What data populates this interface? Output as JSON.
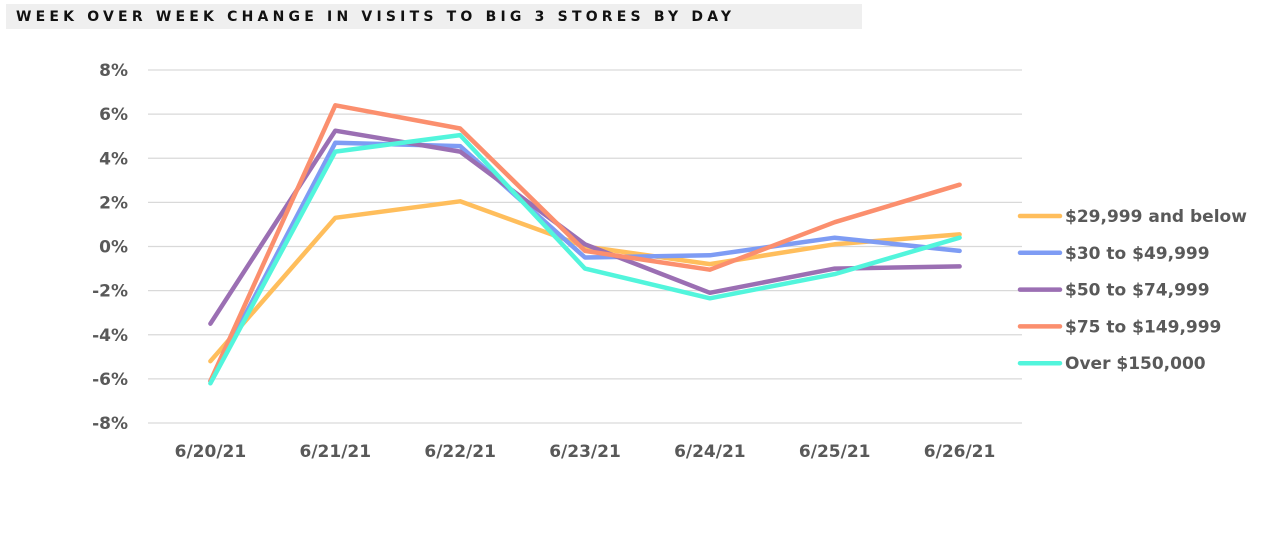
{
  "title": "WEEK OVER WEEK CHANGE IN VISITS TO BIG 3 STORES BY DAY",
  "chart_data": {
    "type": "line",
    "title": "WEEK OVER WEEK CHANGE IN VISITS TO BIG 3 STORES BY DAY",
    "xlabel": "",
    "ylabel": "",
    "categories": [
      "6/20/21",
      "6/21/21",
      "6/22/21",
      "6/23/21",
      "6/24/21",
      "6/25/21",
      "6/26/21"
    ],
    "ylim": [
      -8,
      8
    ],
    "yticks": [
      8,
      6,
      4,
      2,
      0,
      -2,
      -4,
      -6,
      -8
    ],
    "ytick_labels": [
      "8%",
      "6%",
      "4%",
      "2%",
      "0%",
      "-2%",
      "-4%",
      "-6%",
      "-8%"
    ],
    "grid": true,
    "legend_position": "right",
    "series": [
      {
        "name": "$29,999 and below",
        "color": "#FFBE5C",
        "values": [
          -5.2,
          1.3,
          2.05,
          0.0,
          -0.8,
          0.1,
          0.55
        ]
      },
      {
        "name": "$30 to $49,999",
        "color": "#7E9CF4",
        "values": [
          -6.1,
          4.7,
          4.55,
          -0.5,
          -0.4,
          0.4,
          -0.2
        ]
      },
      {
        "name": "$50 to $74,999",
        "color": "#9B6FB3",
        "values": [
          -3.5,
          5.25,
          4.3,
          0.1,
          -2.1,
          -1.0,
          -0.9
        ]
      },
      {
        "name": "$75 to $149,999",
        "color": "#FB8F6E",
        "values": [
          -6.1,
          6.4,
          5.35,
          -0.2,
          -1.05,
          1.1,
          2.8
        ]
      },
      {
        "name": "Over $150,000",
        "color": "#52F5DC",
        "values": [
          -6.2,
          4.3,
          5.05,
          -1.0,
          -2.35,
          -1.25,
          0.4
        ]
      }
    ]
  }
}
